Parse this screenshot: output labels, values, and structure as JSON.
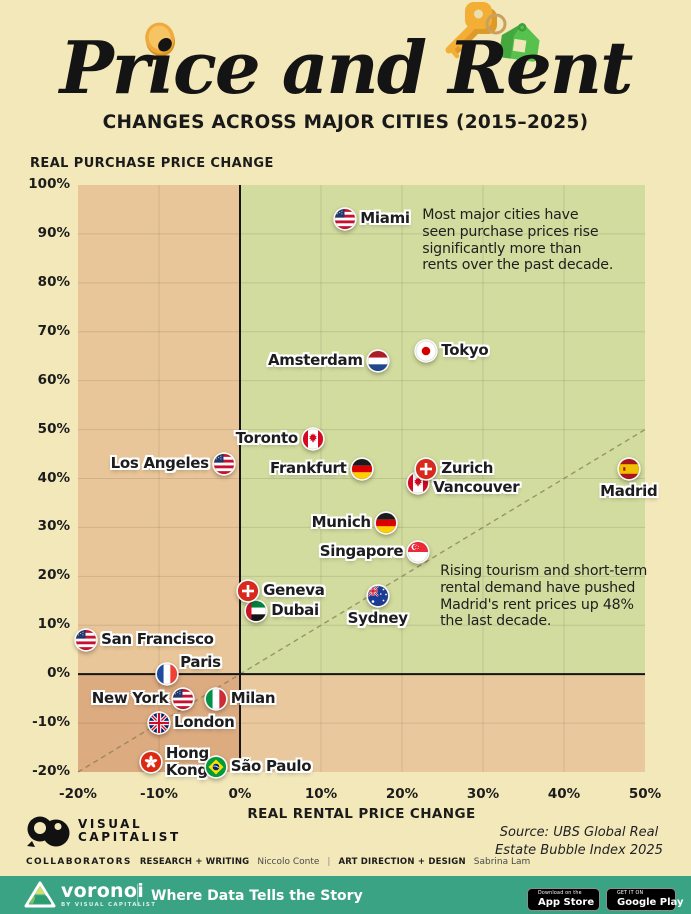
{
  "header": {
    "title": "Price and Rent",
    "subtitle": "CHANGES ACROSS MAJOR CITIES (2015–2025)"
  },
  "chart_data": {
    "type": "scatter",
    "title": "Price and Rent — Changes across major cities (2015–2025)",
    "xlabel": "REAL RENTAL PRICE CHANGE",
    "ylabel": "REAL PURCHASE PRICE CHANGE",
    "xlim": [
      -20,
      50
    ],
    "ylim": [
      -20,
      100
    ],
    "x_ticks": [
      "-20%",
      "-10%",
      "0%",
      "10%",
      "20%",
      "30%",
      "40%",
      "50%"
    ],
    "y_ticks": [
      "100%",
      "90%",
      "80%",
      "70%",
      "60%",
      "50%",
      "40%",
      "30%",
      "20%",
      "10%",
      "0%",
      "-10%",
      "-20%"
    ],
    "grid": true,
    "diagonal_reference_line": "dashed y = x (equal price and rent change)",
    "points": [
      {
        "city": "Miami",
        "country": "us",
        "rent_change_pct": 13,
        "price_change_pct": 93,
        "side": "right"
      },
      {
        "city": "Amsterdam",
        "country": "nl",
        "rent_change_pct": 17,
        "price_change_pct": 64,
        "side": "left"
      },
      {
        "city": "Tokyo",
        "country": "jp",
        "rent_change_pct": 23,
        "price_change_pct": 66,
        "side": "right"
      },
      {
        "city": "Toronto",
        "country": "ca",
        "rent_change_pct": 9,
        "price_change_pct": 48,
        "side": "left"
      },
      {
        "city": "Los Angeles",
        "country": "us",
        "rent_change_pct": -2,
        "price_change_pct": 43,
        "side": "left"
      },
      {
        "city": "Frankfurt",
        "country": "de",
        "rent_change_pct": 15,
        "price_change_pct": 42,
        "side": "left"
      },
      {
        "city": "Vancouver",
        "country": "ca",
        "rent_change_pct": 22,
        "price_change_pct": 39,
        "side": "right",
        "label_dy": 5
      },
      {
        "city": "Zurich",
        "country": "ch",
        "rent_change_pct": 23,
        "price_change_pct": 42,
        "side": "right"
      },
      {
        "city": "Madrid",
        "country": "es",
        "rent_change_pct": 48,
        "price_change_pct": 42,
        "side": "below"
      },
      {
        "city": "Munich",
        "country": "de",
        "rent_change_pct": 18,
        "price_change_pct": 31,
        "side": "left"
      },
      {
        "city": "Singapore",
        "country": "sg",
        "rent_change_pct": 22,
        "price_change_pct": 25,
        "side": "left"
      },
      {
        "city": "Dubai",
        "country": "ae",
        "rent_change_pct": 2,
        "price_change_pct": 13,
        "side": "right"
      },
      {
        "city": "Geneva",
        "country": "ch",
        "rent_change_pct": 1,
        "price_change_pct": 17,
        "side": "right"
      },
      {
        "city": "Sydney",
        "country": "au",
        "rent_change_pct": 17,
        "price_change_pct": 16,
        "side": "below"
      },
      {
        "city": "San Francisco",
        "country": "us",
        "rent_change_pct": -19,
        "price_change_pct": 7,
        "side": "right"
      },
      {
        "city": "Paris",
        "country": "fr",
        "rent_change_pct": -9,
        "price_change_pct": 0,
        "side": "above-right"
      },
      {
        "city": "New York",
        "country": "us",
        "rent_change_pct": -7,
        "price_change_pct": -5,
        "side": "left"
      },
      {
        "city": "Milan",
        "country": "it",
        "rent_change_pct": -3,
        "price_change_pct": -5,
        "side": "right"
      },
      {
        "city": "London",
        "country": "gb",
        "rent_change_pct": -10,
        "price_change_pct": -10,
        "side": "right"
      },
      {
        "city": "Hong Kong",
        "country": "hk",
        "rent_change_pct": -11,
        "price_change_pct": -18,
        "side": "right",
        "two_line": true
      },
      {
        "city": "São Paulo",
        "country": "br",
        "rent_change_pct": -3,
        "price_change_pct": -19,
        "side": "right"
      }
    ],
    "annotations": [
      {
        "text": "Most major cities have\nseen purchase prices rise\nsignificantly more than\nrents over the past decade.",
        "x": 22.5,
        "y": 95.5
      },
      {
        "text": "Rising tourism and short-term\nrental demand have pushed\nMadrid's rent prices up 48%\nthe last decade.",
        "x": 24.7,
        "y": 22.7
      }
    ]
  },
  "source_lines": [
    "Source: UBS Global Real",
    "Estate Bubble Index 2025"
  ],
  "brand": {
    "line1": "VISUAL",
    "line2": "CAPITALIST"
  },
  "collaborators": {
    "heading": "COLLABORATORS",
    "role1": "RESEARCH + WRITING",
    "name1": "Niccolo Conte",
    "pipe": "|",
    "role2": "ART DIRECTION + DESIGN",
    "name2": "Sabrina Lam"
  },
  "footer": {
    "logo_text": "voronoi",
    "logo_sub": "BY VISUAL CAPITALIST",
    "tagline": "Where Data Tells the Story",
    "appstore_small": "Download on the",
    "appstore_big": "App Store",
    "gplay_small": "GET IT ON",
    "gplay_big": "Google Play"
  },
  "icons": {
    "title_left": "gold-coin-icon",
    "title_right": "keys-with-house-keychain-icon",
    "brand_mark": "visual-capitalist-logo",
    "footer_mark": "voronoi-logo",
    "appstore": "apple-logo-icon",
    "gplay": "google-play-icon"
  },
  "colors": {
    "background": "#f2e8ba",
    "quadrant_top_left": "#e8c699",
    "quadrant_top_right": "#d2dc9f",
    "quadrant_bottom_left": "#dcab80",
    "quadrant_bottom_right": "#e9c89e",
    "axis": "#141414",
    "grid": "rgba(0,0,0,0.10)",
    "diagonal": "#8a7a55",
    "footer_teal": "#3aa383",
    "coin_gold": "#f2b23a",
    "house_green": "#56c14d"
  }
}
